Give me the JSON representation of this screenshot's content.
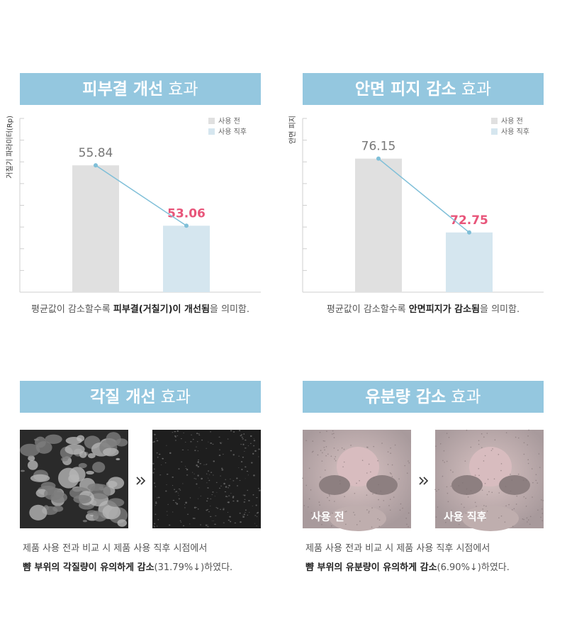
{
  "chart_data": [
    {
      "type": "bar",
      "title": "피부결 개선",
      "title_suffix": "효과",
      "y_label": "거칠기 파라미터(Rp)",
      "categories": [
        "사용 전",
        "사용 직후"
      ],
      "values": [
        55.84,
        53.06
      ],
      "colors": [
        "#e0e0e0",
        "#d5e6ef"
      ],
      "value_label_colors": [
        "#777777",
        "#e8557a"
      ],
      "connector_color": "#7fbfd8",
      "ylim": [
        50,
        58
      ],
      "yticks": [
        50,
        51,
        52,
        53,
        54,
        55,
        56,
        57,
        58
      ],
      "caption": [
        {
          "text": "평균값이 감소할수록 ",
          "bold": false
        },
        {
          "text": "피부결(거칠기)이 개선됨",
          "bold": true
        },
        {
          "text": "을 의미함.",
          "bold": false
        }
      ]
    },
    {
      "type": "bar",
      "title": "안면 피지 감소",
      "title_suffix": "효과",
      "y_label": "안면 피지",
      "categories": [
        "사용 전",
        "사용 직후"
      ],
      "values": [
        76.15,
        72.75
      ],
      "colors": [
        "#e0e0e0",
        "#d5e6ef"
      ],
      "value_label_colors": [
        "#777777",
        "#e8557a"
      ],
      "connector_color": "#7fbfd8",
      "ylim": [
        70,
        78
      ],
      "yticks": [
        70,
        71,
        72,
        73,
        74,
        75,
        76,
        77,
        78
      ],
      "caption": [
        {
          "text": "평균값이 감소할수록 ",
          "bold": false
        },
        {
          "text": "안면피지가 감소됨",
          "bold": true
        },
        {
          "text": "을 의미함.",
          "bold": false
        }
      ]
    }
  ],
  "panels": [
    {
      "title": "각질 개선",
      "title_suffix": "효과",
      "kind": "skin",
      "image_labels": [],
      "caption": [
        [
          {
            "text": "제품 사용 전과 비교 시 제품 사용 직후 시점에서",
            "bold": false
          }
        ],
        [
          {
            "text": "뺨 부위의 각질량이 유의하게 감소",
            "bold": true
          },
          {
            "text": "(31.79%↓)하였다.",
            "bold": false
          }
        ]
      ]
    },
    {
      "title": "유분량 감소",
      "title_suffix": "효과",
      "kind": "nose",
      "image_labels": [
        "사용 전",
        "사용 직후"
      ],
      "caption": [
        [
          {
            "text": "제품 사용 전과 비교 시 제품 사용 직후 시점에서",
            "bold": false
          }
        ],
        [
          {
            "text": "뺨 부위의 유분량이 유의하게 감소",
            "bold": true
          },
          {
            "text": "(6.90%↓)하였다.",
            "bold": false
          }
        ]
      ]
    }
  ]
}
